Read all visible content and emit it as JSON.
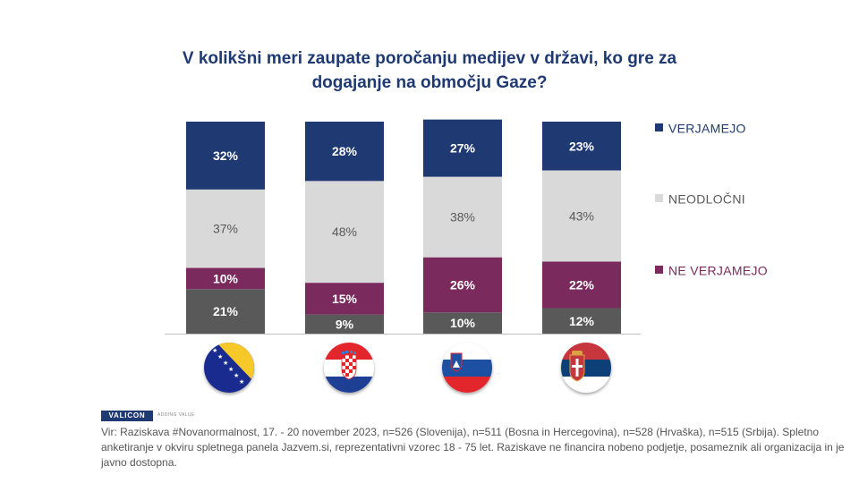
{
  "title_line1": "V kolikšni  meri zaupate poročanju  medijev v državi,  ko gre za",
  "title_line2": "dogajanje  na območju Gaze?",
  "chart_data": {
    "type": "bar",
    "stacked": true,
    "categories": [
      "Bosna in Hercegovina",
      "Hrvaška",
      "Slovenija",
      "Srbija"
    ],
    "ylim": [
      0,
      100
    ],
    "legend_position": "right",
    "grid": false,
    "series": [
      {
        "name": "VERJAMEJO",
        "values": [
          32,
          28,
          27,
          23
        ],
        "labels": [
          "32%",
          "28%",
          "27%",
          "23%"
        ],
        "color": "#1f3a72",
        "label_color": "#ffffff",
        "in_legend": true
      },
      {
        "name": "NEODLOČNI",
        "values": [
          37,
          48,
          38,
          43
        ],
        "labels": [
          "37%",
          "48%",
          "38%",
          "43%"
        ],
        "color": "#d9d9d9",
        "label_color": "#595959",
        "in_legend": true
      },
      {
        "name": "NE VERJAMEJO",
        "values": [
          10,
          15,
          26,
          22
        ],
        "labels": [
          "10%",
          "15%",
          "26%",
          "22%"
        ],
        "color": "#7b2a5e",
        "label_color": "#ffffff",
        "in_legend": true
      },
      {
        "name": "",
        "values": [
          21,
          9,
          10,
          12
        ],
        "labels": [
          "21%",
          "9%",
          "10%",
          "12%"
        ],
        "color": "#595959",
        "label_color": "#ffffff",
        "in_legend": false
      }
    ]
  },
  "flags": [
    "bosnia-flag-icon",
    "croatia-flag-icon",
    "slovenia-flag-icon",
    "serbia-flag-icon"
  ],
  "brand": {
    "logo": "VALICON",
    "tagline": "ADDING VALUE"
  },
  "footnote": "Vir: Raziskava #Novanormalnost, 17. - 20 november 2023,  n=526  (Slovenija), n=511 (Bosna in Hercegovina), n=528 (Hrvaška), n=515 (Srbija). Spletno anketiranje v okviru spletnega panela Jazvem.si, reprezentativni vzorec 18 - 75 let. Raziskave ne financira nobeno podjetje, posameznik ali organizacija in je javno dostopna."
}
